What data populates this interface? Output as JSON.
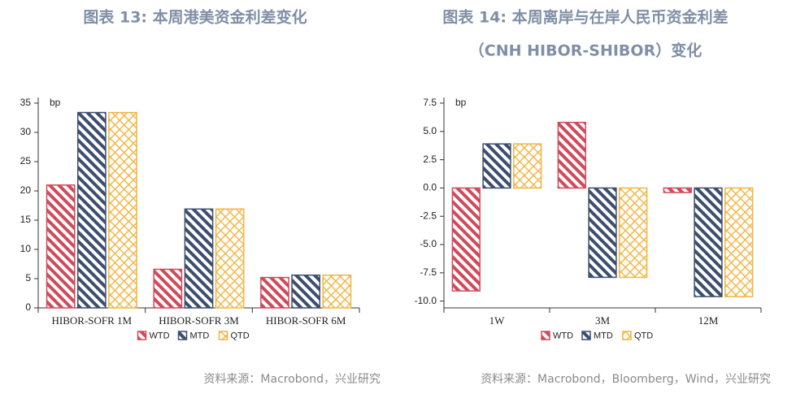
{
  "chart_data": [
    {
      "type": "bar",
      "title": [
        "图表 13: 本周港美资金利差变化"
      ],
      "y_label": "bp",
      "categories": [
        "HIBOR-SOFR 1M",
        "HIBOR-SOFR 3M",
        "HIBOR-SOFR 6M"
      ],
      "series": [
        {
          "name": "WTD",
          "color": "#d04a5a",
          "hatch": "diagonal",
          "values": [
            21,
            6.6,
            5.2
          ]
        },
        {
          "name": "MTD",
          "color": "#3d4f6e",
          "hatch": "diagonal",
          "values": [
            33.4,
            16.9,
            5.6
          ]
        },
        {
          "name": "QTD",
          "color": "#f2b440",
          "hatch": "cross",
          "values": [
            33.4,
            16.9,
            5.6
          ]
        }
      ],
      "ylim": [
        0,
        35
      ],
      "yticks": [
        0,
        5,
        10,
        15,
        20,
        25,
        30,
        35
      ],
      "source": "资料来源：Macrobond，兴业研究"
    },
    {
      "type": "bar",
      "title": [
        "图表 14: 本周离岸与在岸人民币资金利差",
        "（CNH HIBOR-SHIBOR）变化"
      ],
      "y_label": "bp",
      "categories": [
        "1W",
        "3M",
        "12M"
      ],
      "series": [
        {
          "name": "WTD",
          "color": "#d04a5a",
          "hatch": "diagonal",
          "values": [
            -9.1,
            5.8,
            -0.4
          ]
        },
        {
          "name": "MTD",
          "color": "#3d4f6e",
          "hatch": "diagonal",
          "values": [
            3.9,
            -7.9,
            -9.6
          ]
        },
        {
          "name": "QTD",
          "color": "#f2b440",
          "hatch": "cross",
          "values": [
            3.9,
            -7.9,
            -9.6
          ]
        }
      ],
      "ylim": [
        -10.6,
        7.5
      ],
      "yticks": [
        {
          "value": -10,
          "label": "-10.0"
        },
        -7.5,
        {
          "value": -5,
          "label": "-5.0"
        },
        -2.5,
        {
          "value": 0,
          "label": "0.0"
        },
        2.5,
        {
          "value": 5,
          "label": "5.0"
        },
        7.5
      ],
      "source": "资料来源：Macrobond，Bloomberg，Wind，兴业研究"
    }
  ]
}
